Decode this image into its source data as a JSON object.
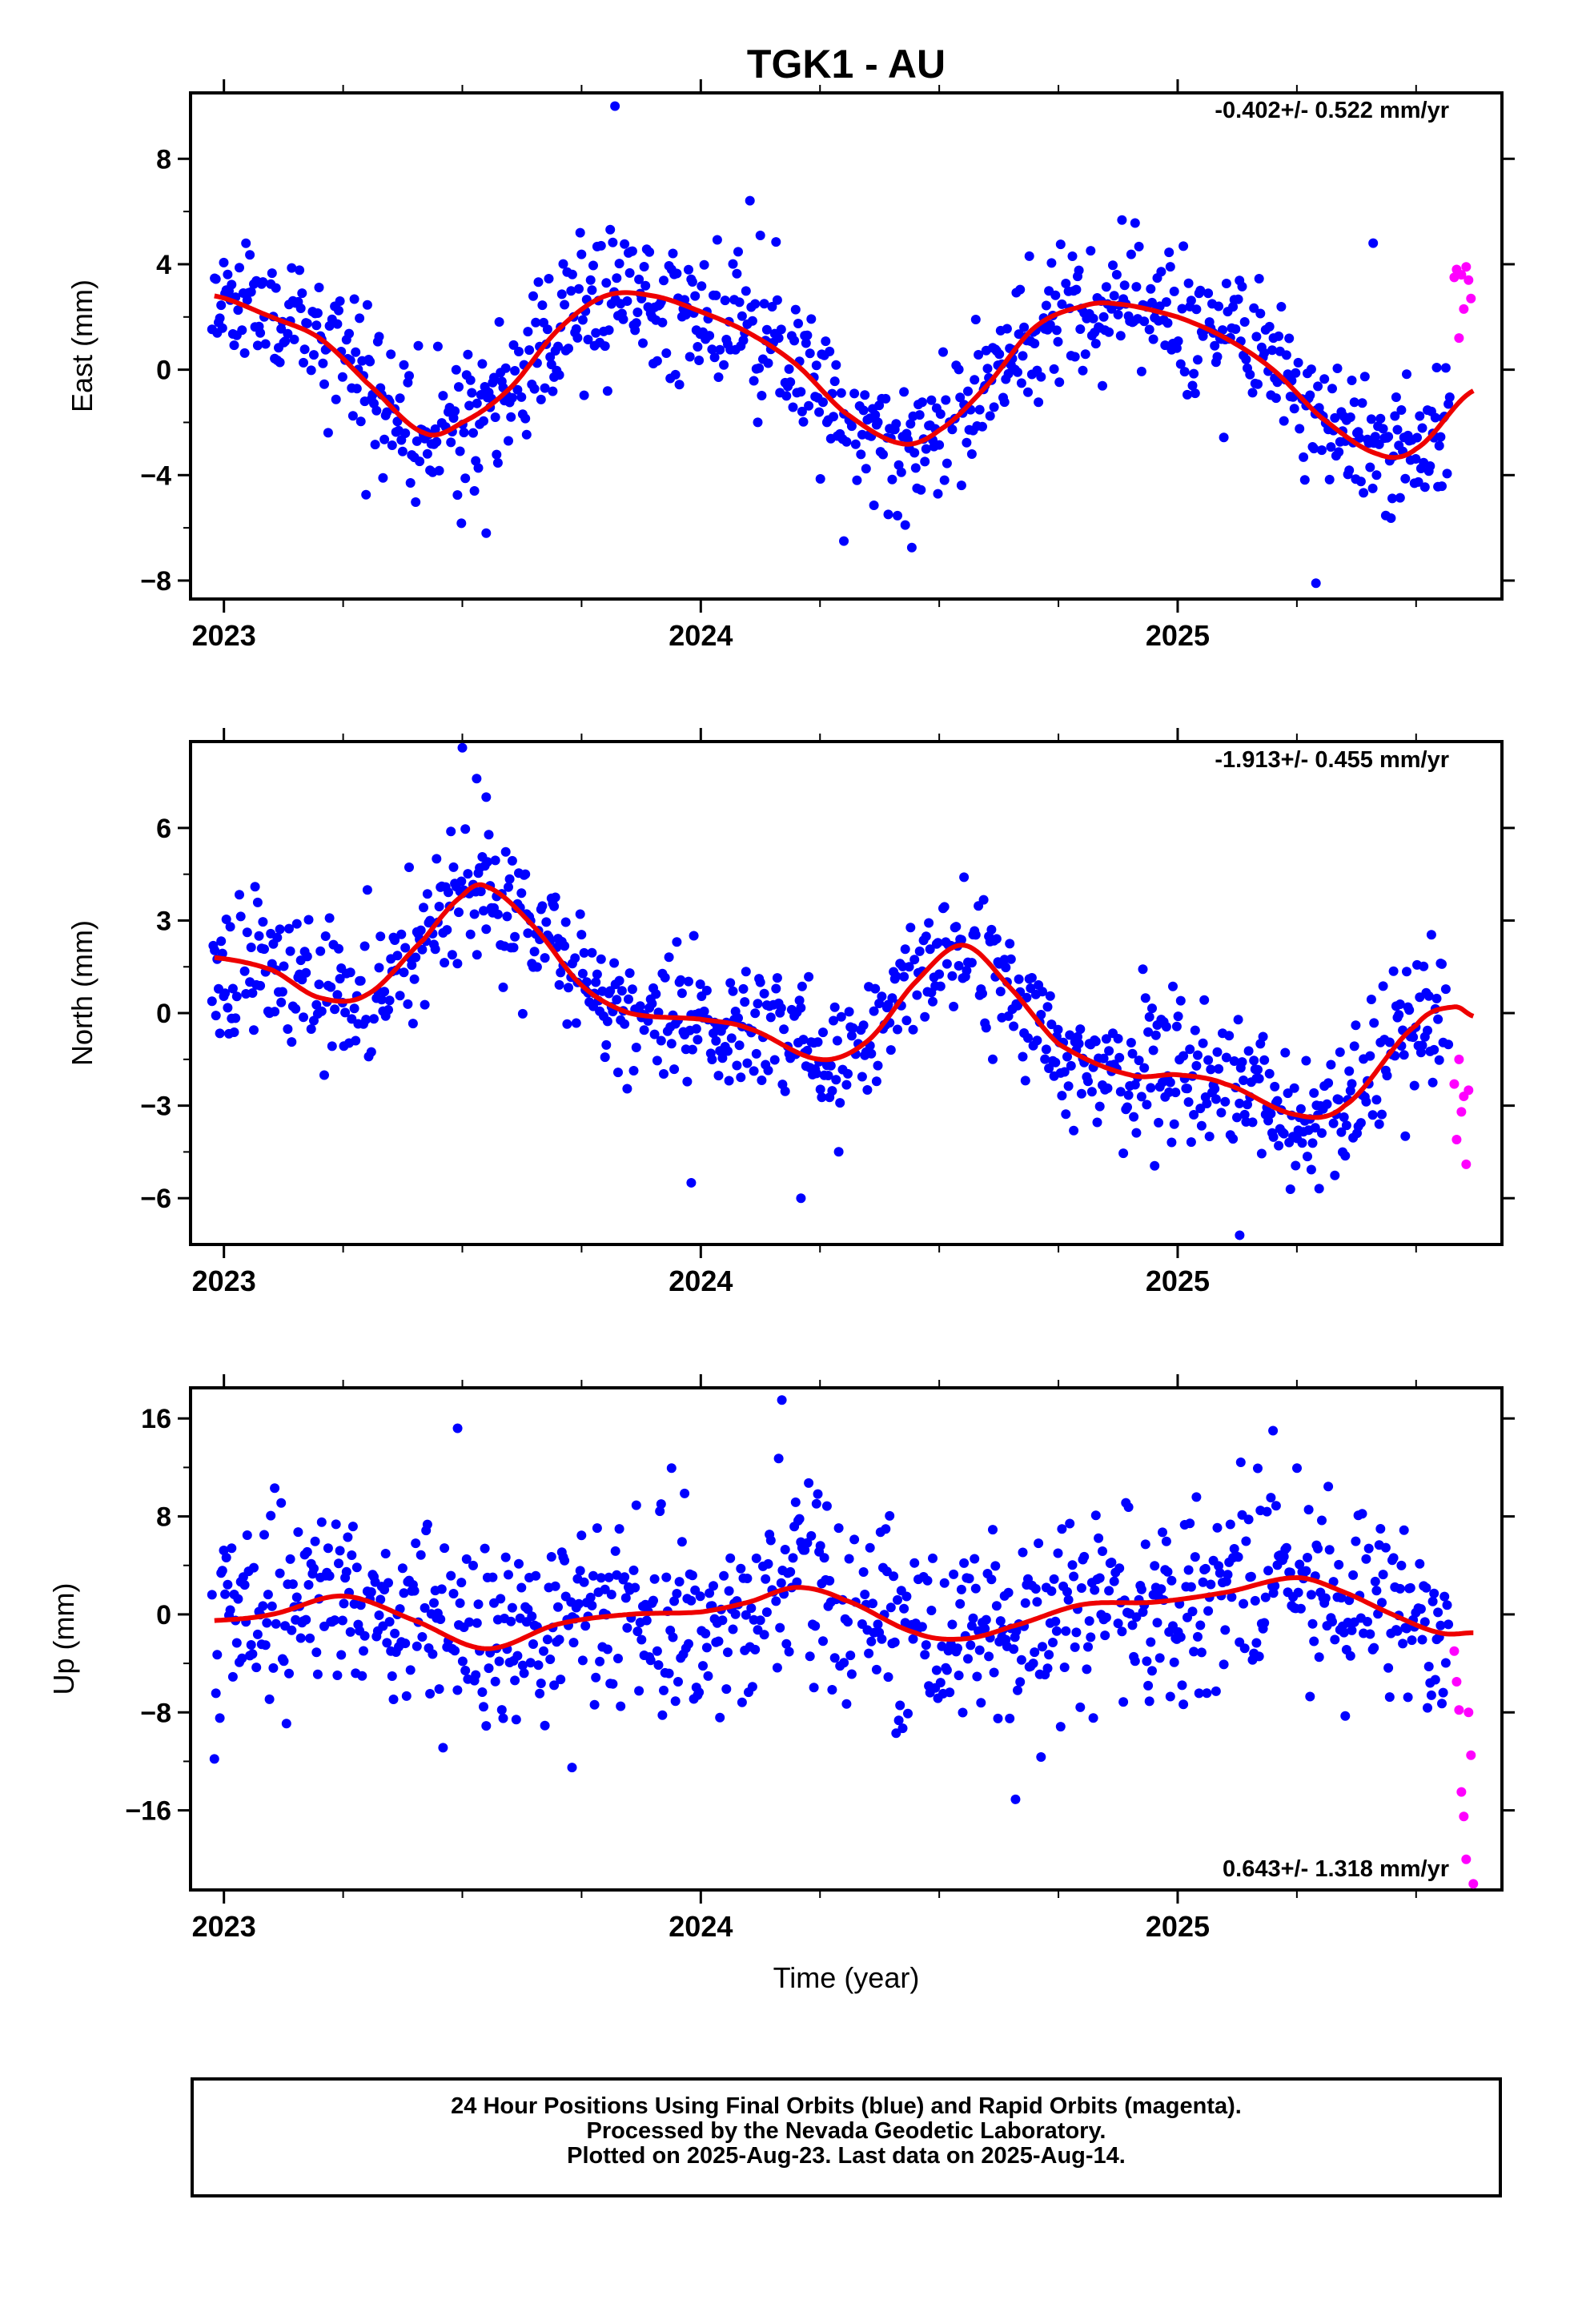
{
  "title": "TGK1 - AU",
  "xlabel": "Time (year)",
  "footer": {
    "line1": "24 Hour Positions Using Final Orbits (blue) and Rapid Orbits (magenta).",
    "line2": "Processed by the Nevada Geodetic Laboratory.",
    "line3": "Plotted on 2025-Aug-23. Last data on 2025-Aug-14."
  },
  "colors": {
    "final": "#0000ff",
    "rapid": "#ff00ff",
    "fit": "#ee0000",
    "frame": "#000000"
  },
  "chart_data": [
    {
      "type": "scatter",
      "ylabel": "East (mm)",
      "rate": "-0.402+/- 0.522 mm/yr",
      "xlim": [
        2022.93,
        2025.68
      ],
      "ylim": [
        -8.7,
        10.5
      ],
      "yticks": [
        "8",
        "4",
        "0",
        "−4",
        "−8"
      ],
      "ytick_values": [
        8,
        4,
        0,
        -4,
        -8
      ],
      "xticks": [
        "2023",
        "2024",
        "2025"
      ],
      "fit": {
        "x": [
          2022.98,
          2023.1,
          2023.2,
          2023.3,
          2023.42,
          2023.5,
          2023.6,
          2023.7,
          2023.8,
          2023.9,
          2024.0,
          2024.1,
          2024.2,
          2024.3,
          2024.42,
          2024.5,
          2024.6,
          2024.7,
          2024.8,
          2024.87,
          2025.0,
          2025.1,
          2025.2,
          2025.3,
          2025.42,
          2025.5,
          2025.62
        ],
        "y": [
          2.8,
          2.0,
          1.2,
          -0.5,
          -2.4,
          -2.0,
          -0.7,
          1.5,
          2.8,
          2.8,
          2.2,
          1.4,
          0.2,
          -1.6,
          -2.8,
          -2.3,
          -0.6,
          1.6,
          2.4,
          2.5,
          2.0,
          1.2,
          0.0,
          -1.8,
          -3.2,
          -3.0,
          -0.8
        ]
      },
      "noise": 1.35,
      "seed": 11,
      "outliers": {
        "x": [
          2023.55,
          2023.82,
          2024.3,
          2025.29,
          2025.41
        ],
        "y": [
          -6.2,
          10.0,
          -6.5,
          -8.1,
          4.8
        ]
      },
      "rapid": {
        "x": [
          2025.58,
          2025.585,
          2025.59,
          2025.595,
          2025.6,
          2025.605,
          2025.61,
          2025.615
        ],
        "y": [
          3.5,
          3.8,
          1.2,
          3.6,
          2.3,
          3.9,
          3.4,
          2.7
        ]
      }
    },
    {
      "type": "scatter",
      "ylabel": "North (mm)",
      "rate": "-1.913+/- 0.455 mm/yr",
      "xlim": [
        2022.93,
        2025.68
      ],
      "ylim": [
        -7.5,
        8.8
      ],
      "yticks": [
        "6",
        "3",
        "0",
        "−3",
        "−6"
      ],
      "ytick_values": [
        6,
        3,
        0,
        -3,
        -6
      ],
      "xticks": [
        "2023",
        "2024",
        "2025"
      ],
      "fit": {
        "x": [
          2022.98,
          2023.1,
          2023.2,
          2023.3,
          2023.42,
          2023.5,
          2023.55,
          2023.65,
          2023.75,
          2023.85,
          2024.0,
          2024.1,
          2024.25,
          2024.35,
          2024.45,
          2024.55,
          2024.65,
          2024.75,
          2024.9,
          2025.0,
          2025.1,
          2025.25,
          2025.35,
          2025.5,
          2025.58,
          2025.62
        ],
        "y": [
          1.8,
          1.4,
          0.5,
          0.6,
          2.4,
          3.8,
          4.1,
          2.8,
          0.9,
          0.0,
          -0.2,
          -0.5,
          -1.5,
          -0.9,
          1.0,
          2.2,
          0.8,
          -1.0,
          -2.0,
          -2.0,
          -2.3,
          -3.3,
          -3.0,
          -0.4,
          0.2,
          -0.1
        ]
      },
      "noise": 1.1,
      "seed": 23,
      "outliers": {
        "x": [
          2023.5,
          2023.53,
          2023.55,
          2023.98,
          2024.21,
          2025.13
        ],
        "y": [
          8.6,
          7.6,
          7.0,
          -5.5,
          -6.0,
          -7.2
        ]
      },
      "rapid": {
        "x": [
          2025.58,
          2025.585,
          2025.59,
          2025.595,
          2025.6,
          2025.605,
          2025.61
        ],
        "y": [
          -2.3,
          -4.1,
          -1.5,
          -3.2,
          -2.7,
          -4.9,
          -2.5
        ]
      }
    },
    {
      "type": "scatter",
      "ylabel": "Up (mm)",
      "rate": "0.643+/- 1.318 mm/yr",
      "xlim": [
        2022.93,
        2025.68
      ],
      "ylim": [
        -22.5,
        18.5
      ],
      "yticks": [
        "16",
        "8",
        "0",
        "−8",
        "−16"
      ],
      "ytick_values": [
        16,
        8,
        0,
        -8,
        -16
      ],
      "xticks": [
        "2023",
        "2024",
        "2025"
      ],
      "fit": {
        "x": [
          2022.98,
          2023.1,
          2023.25,
          2023.4,
          2023.55,
          2023.7,
          2023.85,
          2024.0,
          2024.1,
          2024.2,
          2024.3,
          2024.45,
          2024.55,
          2024.65,
          2024.8,
          2024.95,
          2025.1,
          2025.25,
          2025.35,
          2025.45,
          2025.55,
          2025.62
        ],
        "y": [
          -0.5,
          0.0,
          1.5,
          -0.5,
          -2.8,
          -0.8,
          0.0,
          0.2,
          1.0,
          2.2,
          1.2,
          -1.5,
          -2.0,
          -1.0,
          0.8,
          1.0,
          1.8,
          3.0,
          1.8,
          0.0,
          -1.5,
          -1.5
        ]
      },
      "noise": 3.9,
      "seed": 37,
      "outliers": {
        "x": [
          2022.98,
          2023.49,
          2023.73,
          2024.17,
          2024.66,
          2025.2
        ],
        "y": [
          -11.8,
          15.2,
          -12.5,
          17.5,
          -15.1,
          15.0
        ]
      },
      "rapid": {
        "x": [
          2025.58,
          2025.585,
          2025.59,
          2025.595,
          2025.6,
          2025.605,
          2025.61,
          2025.615,
          2025.62
        ],
        "y": [
          -3.0,
          -5.5,
          -7.8,
          -14.5,
          -16.5,
          -20.0,
          -8.0,
          -11.5,
          -22.0
        ]
      }
    }
  ]
}
